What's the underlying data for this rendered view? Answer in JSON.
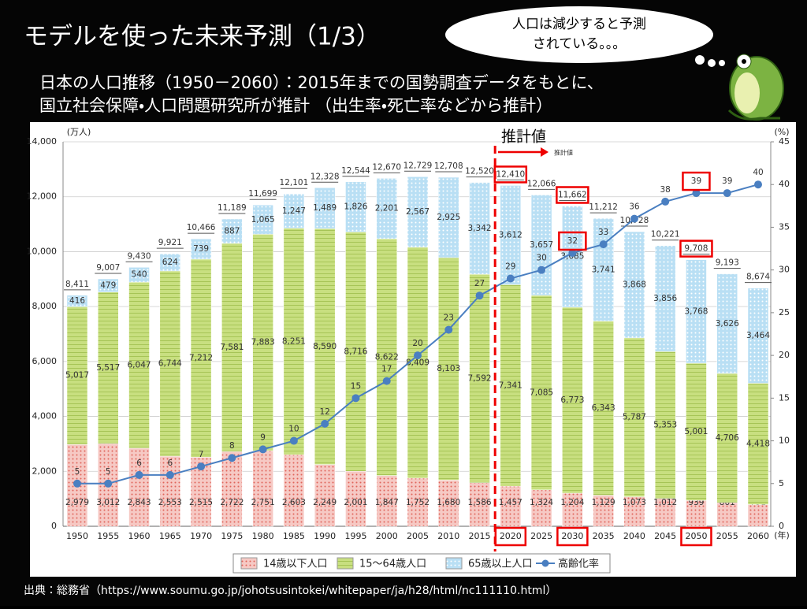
{
  "slide_title": "モデルを使った未来予測（1/3）",
  "bubble": [
    "人口は減少すると予測",
    "されている。。。"
  ],
  "subtitle": [
    "日本の人口推移（1950－2060）：2015年までの国勢調査データをもとに、",
    "国立社会保障・人口問題研究所が推計 （出生率・死亡率などから推計）"
  ],
  "source": "出典：総務省（https://www.soumu.go.jp/johotsusintokei/whitepaper/ja/h28/html/nc111110.html）",
  "chart_data": {
    "type": "bar",
    "stacked": true,
    "y_unit": "(万人)",
    "y2_unit": "(%)",
    "x_unit": "(年)",
    "estimate_label": "推計値",
    "estimate_arrow_label": "推計値",
    "categories": [
      "1950",
      "1955",
      "1960",
      "1965",
      "1970",
      "1975",
      "1980",
      "1985",
      "1990",
      "1995",
      "2000",
      "2005",
      "2010",
      "2015",
      "2020",
      "2025",
      "2030",
      "2035",
      "2040",
      "2045",
      "2050",
      "2055",
      "2060"
    ],
    "series": [
      {
        "name": "14歳以下人口",
        "color": "#f6c9c4",
        "values": [
          2979,
          3012,
          2843,
          2553,
          2515,
          2722,
          2751,
          2603,
          2249,
          2001,
          1847,
          1752,
          1680,
          1586,
          1457,
          1324,
          1204,
          1129,
          1073,
          1012,
          939,
          861,
          791
        ],
        "value_labels": [
          "2,979",
          "3,012",
          "2,843",
          "2,553",
          "2,515",
          "2,722",
          "2,751",
          "2,603",
          "2,249",
          "2,001",
          "1,847",
          "1,752",
          "1,680",
          "1,586",
          "1,457",
          "1,324",
          "1,204",
          "1,129",
          "1,073",
          "1,012",
          "939",
          "861",
          "791"
        ]
      },
      {
        "name": "15～64歳人口",
        "color": "#c8df80",
        "values": [
          5017,
          5517,
          6047,
          6744,
          7212,
          7581,
          7883,
          8251,
          8590,
          8716,
          8622,
          8409,
          8103,
          7592,
          7341,
          7085,
          6773,
          6343,
          5787,
          5353,
          5001,
          4706,
          4418
        ],
        "value_labels": [
          "5,017",
          "5,517",
          "6,047",
          "6,744",
          "7,212",
          "7,581",
          "7,883",
          "8,251",
          "8,590",
          "8,716",
          "8,622",
          "8,409",
          "8,103",
          "7,592",
          "7,341",
          "7,085",
          "6,773",
          "6,343",
          "5,787",
          "5,353",
          "5,001",
          "4,706",
          "4,418"
        ]
      },
      {
        "name": "65歳以上人口",
        "color": "#b9dff4",
        "values": [
          416,
          479,
          540,
          624,
          739,
          887,
          1065,
          1247,
          1489,
          1826,
          2201,
          2567,
          2925,
          3342,
          3612,
          3657,
          3685,
          3741,
          3868,
          3856,
          3768,
          3626,
          3464
        ],
        "value_labels": [
          "416",
          "479",
          "540",
          "624",
          "739",
          "887",
          "1,065",
          "1,247",
          "1,489",
          "1,826",
          "2,201",
          "2,567",
          "2,925",
          "3,342",
          "3,612",
          "3,657",
          "3,685",
          "3,741",
          "3,868",
          "3,856",
          "3,768",
          "3,626",
          "3,464"
        ]
      },
      {
        "name": "高齢化率",
        "type": "line",
        "axis": "y2",
        "color": "#4a7fc1",
        "values": [
          5,
          5,
          6,
          6,
          7,
          8,
          9,
          10,
          12,
          15,
          17,
          20,
          23,
          27,
          29,
          30,
          32,
          33,
          36,
          38,
          39,
          39,
          40
        ]
      }
    ],
    "totals": {
      "values": [
        8411,
        9007,
        9430,
        9921,
        10466,
        11189,
        11699,
        12101,
        12328,
        12544,
        12670,
        12729,
        12708,
        12520,
        12410,
        12066,
        11662,
        11212,
        10728,
        10221,
        9708,
        9193,
        8674
      ],
      "value_labels": [
        "8,411",
        "9,007",
        "9,430",
        "9,921",
        "10,466",
        "11,189",
        "11,699",
        "12,101",
        "12,328",
        "12,544",
        "12,670",
        "12,729",
        "12,708",
        "12,520",
        "12,410",
        "12,066",
        "11,662",
        "11,212",
        "10,728",
        "10,221",
        "9,708",
        "9,193",
        "8,674"
      ]
    },
    "ylim": [
      0,
      14000
    ],
    "yticks": [
      0,
      {
        "value": 2000,
        "label": "2,000"
      },
      {
        "value": 4000,
        "label": "4,000"
      },
      {
        "value": 6000,
        "label": "6,000"
      },
      {
        "value": 8000,
        "label": "8,000"
      },
      {
        "value": 10000,
        "label": "10,000"
      },
      {
        "value": 12000,
        "label": "12,000"
      },
      {
        "value": 14000,
        "label": "14,000"
      }
    ],
    "y2lim": [
      0,
      45
    ],
    "y2ticks": [
      0,
      5,
      10,
      15,
      20,
      25,
      30,
      35,
      40,
      45
    ],
    "grid": true
  }
}
